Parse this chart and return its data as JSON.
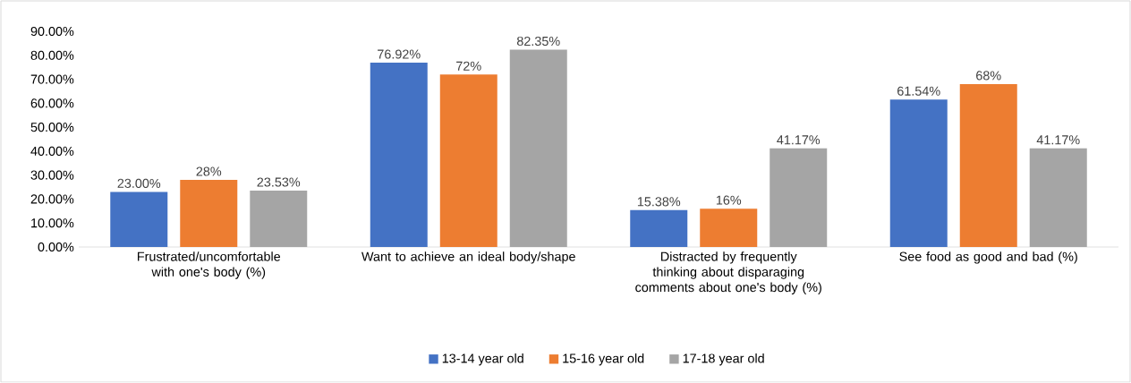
{
  "chart_data": {
    "type": "bar",
    "categories": [
      "Frustrated/uncomfortable with one's body (%)",
      "Want to achieve an ideal body/shape",
      "Distracted by frequently thinking about disparaging comments about one's body (%)",
      "See food as good and bad (%)"
    ],
    "series": [
      {
        "name": "13-14 year old",
        "color": "#4472c4",
        "values": [
          23.0,
          76.92,
          15.38,
          61.54
        ],
        "value_labels": [
          "23.00%",
          "76.92%",
          "15.38%",
          "61.54%"
        ]
      },
      {
        "name": "15-16 year old",
        "color": "#ed7d31",
        "values": [
          28,
          72,
          16,
          68
        ],
        "value_labels": [
          "28%",
          "72%",
          "16%",
          "68%"
        ]
      },
      {
        "name": "17-18 year old",
        "color": "#a5a5a5",
        "values": [
          23.53,
          82.35,
          41.17,
          41.17
        ],
        "value_labels": [
          "23.53%",
          "82.35%",
          "41.17%",
          "41.17%"
        ]
      }
    ],
    "ylim": [
      0,
      90
    ],
    "yticks": [
      {
        "value": 0,
        "label": "0.00%"
      },
      {
        "value": 10,
        "label": "10.00%"
      },
      {
        "value": 20,
        "label": "20.00%"
      },
      {
        "value": 30,
        "label": "30.00%"
      },
      {
        "value": 40,
        "label": "40.00%"
      },
      {
        "value": 50,
        "label": "50.00%"
      },
      {
        "value": 60,
        "label": "60.00%"
      },
      {
        "value": 70,
        "label": "70.00%"
      },
      {
        "value": 80,
        "label": "80.00%"
      },
      {
        "value": 90,
        "label": "90.00%"
      }
    ],
    "legend": "bottom"
  }
}
